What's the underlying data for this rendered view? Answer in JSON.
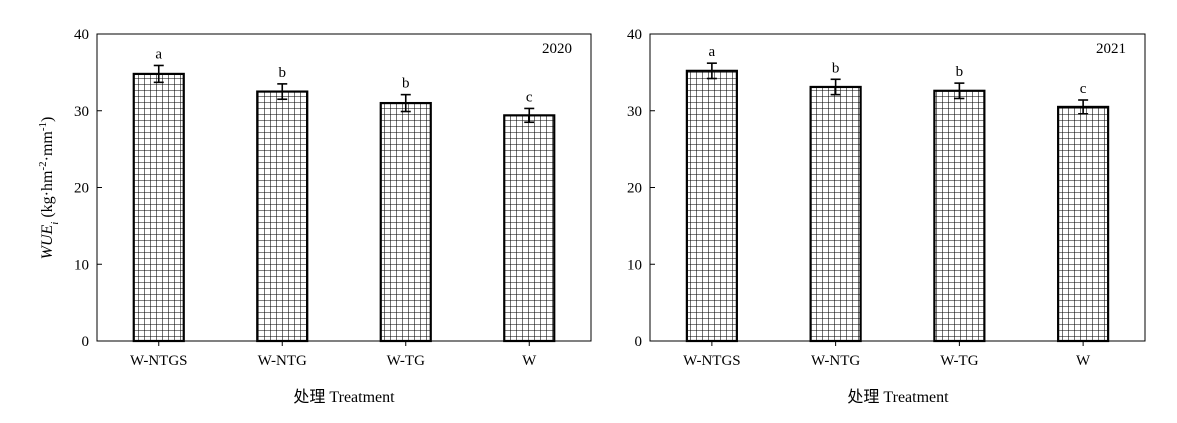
{
  "chart_data": [
    {
      "type": "bar",
      "panel_label": "2020",
      "categories": [
        "W-NTGS",
        "W-NTG",
        "W-TG",
        "W"
      ],
      "values": [
        34.8,
        32.5,
        31.0,
        29.4
      ],
      "errors": [
        1.1,
        1.0,
        1.1,
        0.9
      ],
      "significance": [
        "a",
        "b",
        "b",
        "c"
      ],
      "xlabel": "处理 Treatment",
      "ylabel": "WUEi (kg·hm-2·mm-1)",
      "ylim": [
        0,
        40
      ],
      "yticks": [
        0,
        10,
        20,
        30,
        40
      ],
      "grid": false,
      "bar_pattern": "crosshatch"
    },
    {
      "type": "bar",
      "panel_label": "2021",
      "categories": [
        "W-NTGS",
        "W-NTG",
        "W-TG",
        "W"
      ],
      "values": [
        35.2,
        33.1,
        32.6,
        30.5
      ],
      "errors": [
        1.0,
        1.0,
        1.0,
        0.9
      ],
      "significance": [
        "a",
        "b",
        "b",
        "c"
      ],
      "xlabel": "处理 Treatment",
      "ylabel": "",
      "ylim": [
        0,
        40
      ],
      "yticks": [
        0,
        10,
        20,
        30,
        40
      ],
      "grid": false,
      "bar_pattern": "crosshatch"
    }
  ],
  "ylabel_parts": {
    "main": "WUE",
    "sub": "i",
    "unit_open": " (kg·hm",
    "sup1": "-2",
    "mid": "·mm",
    "sup2": "-1",
    "close": ")"
  },
  "colors": {
    "axis": "#000000",
    "bar_fill": "#ffffff",
    "hatch": "#000000"
  }
}
